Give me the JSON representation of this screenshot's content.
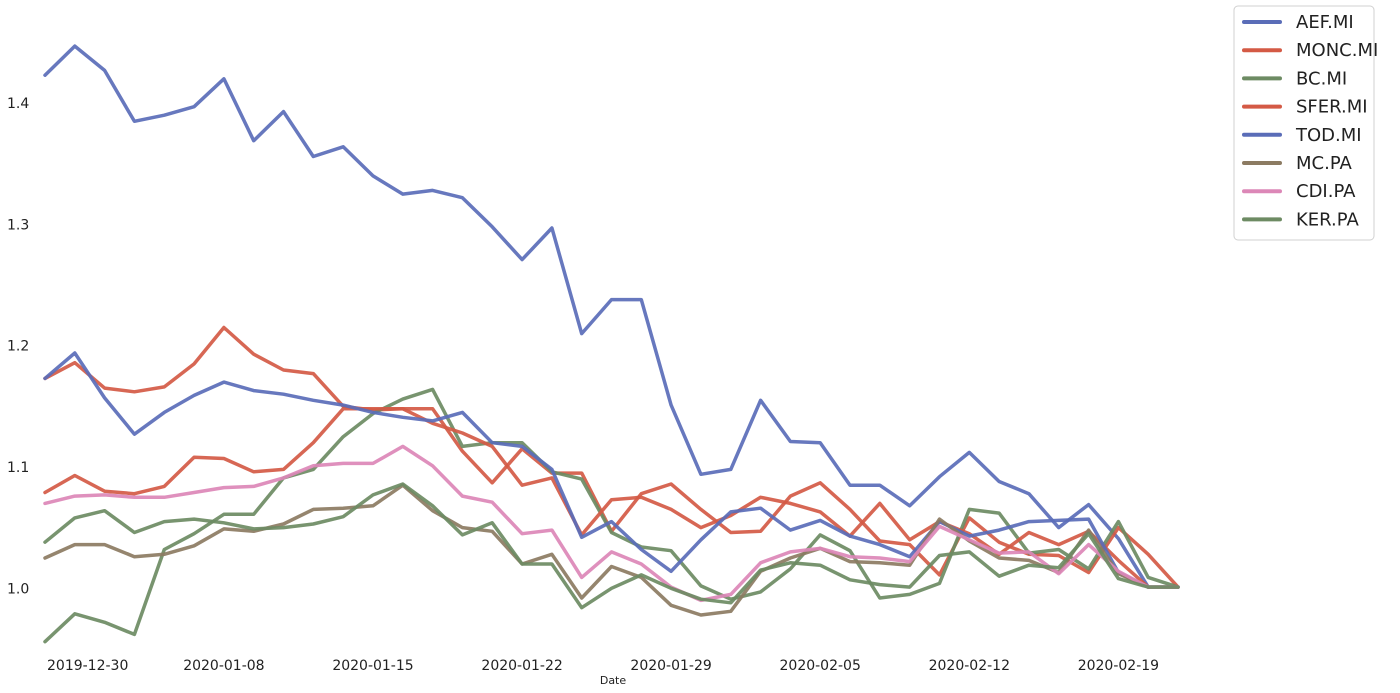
{
  "chart_data": {
    "type": "line",
    "xlabel": "Date",
    "ylabel": "",
    "grid": false,
    "legend_position": "top-right",
    "ylim": [
      0.945,
      1.485
    ],
    "yticks": [
      1.0,
      1.1,
      1.2,
      1.3,
      1.4
    ],
    "ytick_labels": [
      "1.0",
      "1.1",
      "1.2",
      "1.3",
      "1.4"
    ],
    "xticks": [
      "2019-12-30",
      "2020-01-08",
      "2020-01-15",
      "2020-01-22",
      "2020-01-29",
      "2020-02-05",
      "2020-02-12",
      "2020-02-19"
    ],
    "x": [
      "2019-12-30",
      "2019-12-31",
      "2020-01-02",
      "2020-01-03",
      "2020-01-06",
      "2020-01-07",
      "2020-01-08",
      "2020-01-09",
      "2020-01-10",
      "2020-01-13",
      "2020-01-14",
      "2020-01-15",
      "2020-01-16",
      "2020-01-17",
      "2020-01-20",
      "2020-01-21",
      "2020-01-22",
      "2020-01-23",
      "2020-01-24",
      "2020-01-27",
      "2020-01-28",
      "2020-01-29",
      "2020-01-30",
      "2020-01-31",
      "2020-02-03",
      "2020-02-04",
      "2020-02-05",
      "2020-02-06",
      "2020-02-07",
      "2020-02-10",
      "2020-02-11",
      "2020-02-12",
      "2020-02-13",
      "2020-02-14",
      "2020-02-17",
      "2020-02-18",
      "2020-02-19",
      "2020-02-20",
      "2020-02-21"
    ],
    "series": [
      {
        "name": "AEF.MI",
        "color": "#5a6db8",
        "values": [
          1.423,
          1.447,
          1.427,
          1.385,
          1.39,
          1.397,
          1.42,
          1.369,
          1.393,
          1.356,
          1.364,
          1.34,
          1.325,
          1.328,
          1.322,
          1.298,
          1.271,
          1.297,
          1.21,
          1.238,
          1.238,
          1.151,
          1.094,
          1.098,
          1.155,
          1.121,
          1.12,
          1.085,
          1.085,
          1.068,
          1.092,
          1.112,
          1.088,
          1.078,
          1.05,
          1.069,
          1.041,
          1.001,
          1.001
        ]
      },
      {
        "name": "MONC.MI",
        "color": "#d45a45",
        "values": [
          1.173,
          1.186,
          1.165,
          1.162,
          1.166,
          1.185,
          1.215,
          1.193,
          1.18,
          1.177,
          1.15,
          1.147,
          1.148,
          1.148,
          1.113,
          1.087,
          1.115,
          1.095,
          1.095,
          1.047,
          1.078,
          1.086,
          1.065,
          1.046,
          1.047,
          1.076,
          1.087,
          1.065,
          1.039,
          1.036,
          1.011,
          1.058,
          1.038,
          1.028,
          1.027,
          1.013,
          1.05,
          1.028,
          1.001
        ]
      },
      {
        "name": "BC.MI",
        "color": "#6d8b63",
        "values": [
          0.956,
          0.979,
          0.972,
          0.962,
          1.032,
          1.045,
          1.061,
          1.061,
          1.091,
          1.098,
          1.125,
          1.144,
          1.156,
          1.164,
          1.117,
          1.12,
          1.12,
          1.096,
          1.09,
          1.046,
          1.034,
          1.031,
          1.002,
          0.991,
          0.997,
          1.016,
          1.044,
          1.031,
          0.992,
          0.995,
          1.004,
          1.065,
          1.062,
          1.029,
          1.032,
          1.016,
          1.055,
          1.009,
          1.001
        ]
      },
      {
        "name": "SFER.MI",
        "color": "#d45a45",
        "values": [
          1.079,
          1.093,
          1.08,
          1.078,
          1.084,
          1.108,
          1.107,
          1.096,
          1.098,
          1.12,
          1.148,
          1.148,
          1.148,
          1.136,
          1.128,
          1.117,
          1.085,
          1.091,
          1.044,
          1.073,
          1.075,
          1.065,
          1.05,
          1.06,
          1.075,
          1.07,
          1.063,
          1.043,
          1.07,
          1.04,
          1.055,
          1.045,
          1.028,
          1.046,
          1.036,
          1.047,
          1.023,
          1.001,
          1.001
        ]
      },
      {
        "name": "TOD.MI",
        "color": "#5a6db8",
        "values": [
          1.173,
          1.194,
          1.157,
          1.127,
          1.145,
          1.159,
          1.17,
          1.163,
          1.16,
          1.155,
          1.151,
          1.145,
          1.141,
          1.138,
          1.145,
          1.12,
          1.117,
          1.098,
          1.042,
          1.055,
          1.032,
          1.014,
          1.04,
          1.063,
          1.066,
          1.048,
          1.056,
          1.043,
          1.036,
          1.026,
          1.055,
          1.043,
          1.048,
          1.055,
          1.056,
          1.057,
          1.013,
          1.001,
          1.001
        ]
      },
      {
        "name": "MC.PA",
        "color": "#8c7b62",
        "values": [
          1.025,
          1.036,
          1.036,
          1.026,
          1.028,
          1.035,
          1.049,
          1.047,
          1.053,
          1.065,
          1.066,
          1.068,
          1.085,
          1.064,
          1.05,
          1.047,
          1.02,
          1.028,
          0.992,
          1.018,
          1.009,
          0.986,
          0.978,
          0.981,
          1.014,
          1.025,
          1.033,
          1.022,
          1.021,
          1.019,
          1.057,
          1.039,
          1.025,
          1.023,
          1.013,
          1.048,
          1.012,
          1.001,
          1.001
        ]
      },
      {
        "name": "CDI.PA",
        "color": "#dc87b7",
        "values": [
          1.07,
          1.076,
          1.077,
          1.075,
          1.075,
          1.079,
          1.083,
          1.084,
          1.091,
          1.101,
          1.103,
          1.103,
          1.117,
          1.101,
          1.076,
          1.071,
          1.045,
          1.048,
          1.009,
          1.03,
          1.02,
          1.001,
          0.99,
          0.995,
          1.021,
          1.03,
          1.033,
          1.026,
          1.025,
          1.022,
          1.051,
          1.04,
          1.029,
          1.03,
          1.012,
          1.036,
          1.014,
          1.001,
          1.001
        ]
      },
      {
        "name": "KER.PA",
        "color": "#6d8b63",
        "values": [
          1.038,
          1.058,
          1.064,
          1.046,
          1.055,
          1.057,
          1.054,
          1.049,
          1.05,
          1.053,
          1.059,
          1.077,
          1.086,
          1.068,
          1.044,
          1.054,
          1.02,
          1.02,
          0.984,
          1.0,
          1.011,
          1.0,
          0.991,
          0.988,
          1.015,
          1.021,
          1.019,
          1.007,
          1.003,
          1.001,
          1.027,
          1.03,
          1.01,
          1.019,
          1.017,
          1.045,
          1.008,
          1.001,
          1.001
        ]
      }
    ]
  }
}
